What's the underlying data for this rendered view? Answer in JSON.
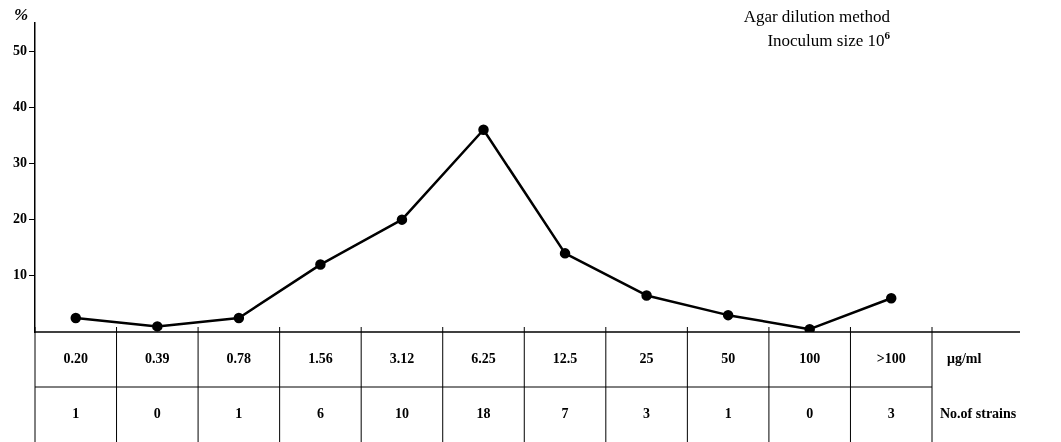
{
  "chart_data": {
    "type": "line",
    "title": "Agar dilution method",
    "subtitle": "Inoculum size 10$^{6}$",
    "ylabel": "%",
    "xlabel": "μg/ml",
    "categories": [
      "0.20",
      "0.39",
      "0.78",
      "1.56",
      "3.12",
      "6.25",
      "12.5",
      "25",
      "50",
      "100",
      ">100"
    ],
    "values": [
      2.5,
      1,
      2.5,
      12,
      20,
      36,
      14,
      6.5,
      3,
      0.5,
      6
    ],
    "color": "#000000",
    "marker": "circle",
    "line_style": "solid",
    "grid": false,
    "legend": false,
    "ylim": [
      0,
      55
    ],
    "yticks": [
      10,
      20,
      30,
      40,
      50
    ],
    "annotations": [
      "No.of strains",
      "1",
      "0",
      "1",
      "6",
      "10",
      "18",
      "7",
      "3",
      "1",
      "0",
      "3"
    ]
  }
}
